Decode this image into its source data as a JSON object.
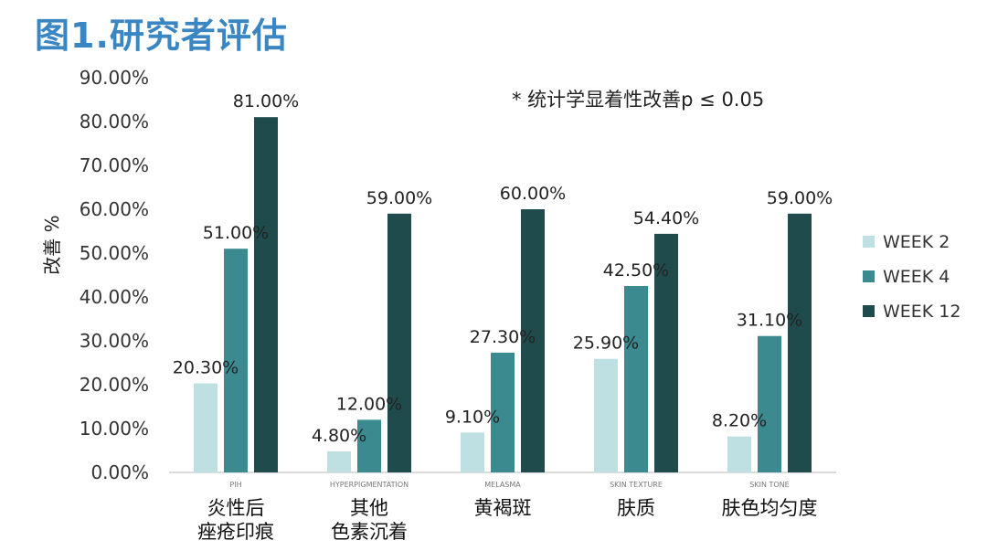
{
  "title": "图1.研究者评估",
  "note": "* 统计学显着性改善p ≤ 0.05",
  "chart_data": {
    "type": "bar",
    "ylabel": "改善 %",
    "ylim": [
      0,
      90
    ],
    "yticks": [
      "0.00%",
      "10.00%",
      "20.00%",
      "30.00%",
      "40.00%",
      "50.00%",
      "60.00%",
      "70.00%",
      "80.00%",
      "90.00%"
    ],
    "categories": [
      "PIH",
      "HYPERPIGMENTATION",
      "MELASMA",
      "SKIN TEXTURE",
      "SKIN TONE"
    ],
    "category_labels_cn": [
      [
        "炎性后",
        "痤疮印痕"
      ],
      [
        "其他",
        "色素沉着"
      ],
      [
        "黄褐斑"
      ],
      [
        "肤质"
      ],
      [
        "肤色均匀度"
      ]
    ],
    "series": [
      {
        "name": "WEEK 2",
        "color": "#bfe0e3",
        "values": [
          20.3,
          4.8,
          9.1,
          25.9,
          8.2
        ],
        "labels": [
          "20.30%",
          "4.80%",
          "9.10%",
          "25.90%",
          "8.20%"
        ]
      },
      {
        "name": "WEEK 4",
        "color": "#3a8a90",
        "values": [
          51.0,
          12.0,
          27.3,
          42.5,
          31.1
        ],
        "labels": [
          "51.00%",
          "12.00%",
          "27.30%",
          "42.50%",
          "31.10%"
        ]
      },
      {
        "name": "WEEK 12",
        "color": "#1f4b4c",
        "values": [
          81.0,
          59.0,
          60.0,
          54.4,
          59.0
        ],
        "labels": [
          "81.00%",
          "59.00%",
          "60.00%",
          "54.40%",
          "59.00%"
        ]
      }
    ],
    "legend_position": "right",
    "grid": false
  }
}
